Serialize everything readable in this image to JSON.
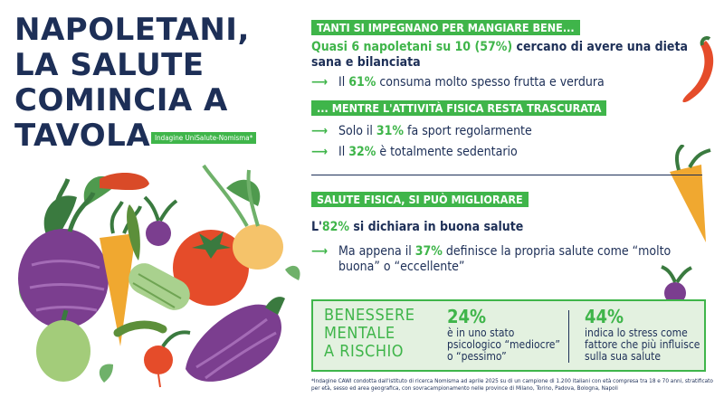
{
  "title": {
    "lines": [
      "NAPOLETANI,",
      "LA SALUTE",
      "COMINCIA A",
      "TAVOLA"
    ],
    "survey_tag": "Indagine UniSalute-Nomisma*"
  },
  "section1": {
    "banner": "TANTI SI IMPEGNANO PER MANGIARE BENE...",
    "lead_hl": "Quasi 6 napoletani su 10 (57%)",
    "lead_rest": " cercano di avere una dieta sana e bilanciata",
    "bullets": [
      {
        "pre": "Il ",
        "hl": "61%",
        "post": " consuma molto spesso frutta e verdura"
      }
    ]
  },
  "section2": {
    "banner": "... MENTRE L'ATTIVITÀ FISICA RESTA TRASCURATA",
    "bullets": [
      {
        "pre": "Solo il ",
        "hl": "31%",
        "post": " fa sport regolarmente"
      },
      {
        "pre": "Il ",
        "hl": "32%",
        "post": " è totalmente sedentario"
      }
    ]
  },
  "section3": {
    "banner": "SALUTE FISICA, SI PUÒ MIGLIORARE",
    "lead_pre": "L'",
    "lead_hl": "82%",
    "lead_post": " si dichiara in buona salute",
    "bullets": [
      {
        "pre": "Ma appena il ",
        "hl": "37%",
        "post": " definisce la propria salute come “molto buona” o “eccellente”"
      }
    ]
  },
  "mental": {
    "title_lines": [
      "BENESSERE",
      "MENTALE",
      "A RISCHIO"
    ],
    "stats": [
      {
        "num": "24%",
        "text": "è in uno stato psicologico “mediocre” o “pessimo”"
      },
      {
        "num": "44%",
        "text": "indica lo stress come fattore che più influisce sulla sua salute"
      }
    ]
  },
  "footnote": "*Indagine CAWI condotta dall'istituto di ricerca Nomisma ad aprile 2025 su di un campione di 1.200 italiani con età compresa tra 18 e 70 anni, stratificato per età, sesso ed area geografica, con sovracampionamento nelle province di Milano, Torino, Padova, Bologna, Napoli",
  "colors": {
    "accent": "#3fb54a",
    "navy": "#1d2f57",
    "box_bg": "#e3f1e0"
  }
}
